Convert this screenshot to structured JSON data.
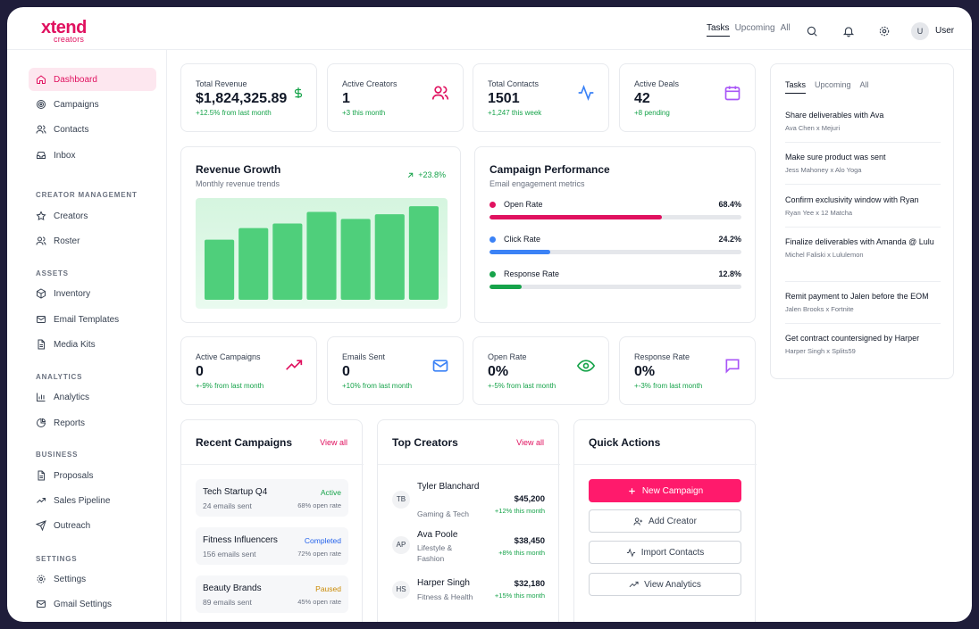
{
  "brand": {
    "line1": "xtend",
    "line2": "creators",
    "accent": "#e0115f"
  },
  "topbar": {
    "tabs": [
      "Tasks",
      "Upcoming",
      "All"
    ],
    "user_initial": "U",
    "user_name": "User",
    "icons": [
      "search-icon",
      "bell-icon",
      "gear-icon"
    ]
  },
  "sidebar": {
    "main": [
      {
        "label": "Dashboard",
        "icon": "home-icon",
        "active": true
      },
      {
        "label": "Campaigns",
        "icon": "target-icon"
      },
      {
        "label": "Contacts",
        "icon": "users-icon"
      },
      {
        "label": "Inbox",
        "icon": "inbox-icon"
      }
    ],
    "sections": [
      {
        "title": "CREATOR MANAGEMENT",
        "items": [
          {
            "label": "Creators",
            "icon": "star-icon"
          },
          {
            "label": "Roster",
            "icon": "users-icon"
          }
        ]
      },
      {
        "title": "ASSETS",
        "items": [
          {
            "label": "Inventory",
            "icon": "box-icon"
          },
          {
            "label": "Email Templates",
            "icon": "mail-icon"
          },
          {
            "label": "Media Kits",
            "icon": "file-icon"
          }
        ]
      },
      {
        "title": "ANALYTICS",
        "items": [
          {
            "label": "Analytics",
            "icon": "bar-chart-icon"
          },
          {
            "label": "Reports",
            "icon": "pie-chart-icon"
          }
        ]
      },
      {
        "title": "BUSINESS",
        "items": [
          {
            "label": "Proposals",
            "icon": "file-icon"
          },
          {
            "label": "Sales Pipeline",
            "icon": "trend-icon"
          },
          {
            "label": "Outreach",
            "icon": "send-icon"
          }
        ]
      },
      {
        "title": "SETTINGS",
        "items": [
          {
            "label": "Settings",
            "icon": "gear-icon"
          },
          {
            "label": "Gmail Settings",
            "icon": "mail-icon"
          }
        ]
      }
    ]
  },
  "stats_top": [
    {
      "label": "Total Revenue",
      "value": "$1,824,325.89",
      "sub": "+12.5% from last month",
      "icon": "dollar-icon",
      "color": "#16a34a"
    },
    {
      "label": "Active Creators",
      "value": "1",
      "sub": "+3 this month",
      "icon": "users-icon",
      "color": "#e0115f"
    },
    {
      "label": "Total Contacts",
      "value": "1501",
      "sub": "+1,247 this week",
      "icon": "activity-icon",
      "color": "#3b82f6"
    },
    {
      "label": "Active Deals",
      "value": "42",
      "sub": "+8 pending",
      "icon": "calendar-icon",
      "color": "#a855f7"
    }
  ],
  "revenue_growth": {
    "title": "Revenue Growth",
    "subtitle": "Monthly revenue trends",
    "change": "+23.8%",
    "chart_data": {
      "type": "bar",
      "values": [
        52,
        62,
        66,
        76,
        70,
        74,
        81
      ],
      "ylim": [
        0,
        88
      ]
    }
  },
  "campaign_performance": {
    "title": "Campaign Performance",
    "subtitle": "Email engagement metrics",
    "metrics": [
      {
        "name": "Open Rate",
        "display": "68.4%",
        "value": 68.4,
        "color": "#e0115f"
      },
      {
        "name": "Click Rate",
        "display": "24.2%",
        "value": 24.2,
        "color": "#3b82f6"
      },
      {
        "name": "Response Rate",
        "display": "12.8%",
        "value": 12.8,
        "color": "#16a34a"
      }
    ]
  },
  "stats_bottom": [
    {
      "label": "Active Campaigns",
      "value": "0",
      "sub": "+-9% from last month",
      "icon": "trend-up-icon",
      "color": "#e0115f"
    },
    {
      "label": "Emails Sent",
      "value": "0",
      "sub": "+10% from last month",
      "icon": "mail-icon",
      "color": "#3b82f6"
    },
    {
      "label": "Open Rate",
      "value": "0%",
      "sub": "+-5% from last month",
      "icon": "eye-icon",
      "color": "#16a34a"
    },
    {
      "label": "Response Rate",
      "value": "0%",
      "sub": "+-3% from last month",
      "icon": "message-icon",
      "color": "#a855f7"
    }
  ],
  "tasks_panel": {
    "tabs": [
      "Tasks",
      "Upcoming",
      "All"
    ],
    "items": [
      {
        "title": "Share deliverables with Ava",
        "sub": "Ava Chen x Mejuri"
      },
      {
        "title": "Make sure product was sent",
        "sub": "Jess Mahoney x Alo Yoga"
      },
      {
        "title": "Confirm exclusivity window with Ryan",
        "sub": "Ryan Yee x 12 Matcha"
      },
      {
        "title": "Finalize deliverables with Amanda @ Lulu",
        "sub": "Michel Faliski x Lululemon"
      },
      {
        "title": "Remit payment to Jalen before the EOM",
        "sub": "Jalen Brooks x Fortnite"
      },
      {
        "title": "Get contract countersigned by Harper",
        "sub": "Harper Singh x Splits59"
      }
    ]
  },
  "recent_campaigns": {
    "title": "Recent Campaigns",
    "view_all": "View all",
    "items": [
      {
        "name": "Tech Startup Q4",
        "sub": "24 emails sent",
        "status": "Active",
        "status_color": "#16a34a",
        "rate": "68% open rate"
      },
      {
        "name": "Fitness Influencers",
        "sub": "156 emails sent",
        "status": "Completed",
        "status_color": "#2563eb",
        "rate": "72% open rate"
      },
      {
        "name": "Beauty Brands",
        "sub": "89 emails sent",
        "status": "Paused",
        "status_color": "#ca8a04",
        "rate": "45% open rate"
      }
    ]
  },
  "top_creators": {
    "title": "Top Creators",
    "view_all": "View all",
    "items": [
      {
        "initials": "TB",
        "name": "Tyler Blanchard",
        "category": "Gaming & Tech",
        "amount": "$45,200",
        "change": "+12% this month"
      },
      {
        "initials": "AP",
        "name": "Ava Poole",
        "category": "Lifestyle & Fashion",
        "amount": "$38,450",
        "change": "+8% this month"
      },
      {
        "initials": "HS",
        "name": "Harper Singh",
        "category": "Fitness & Health",
        "amount": "$32,180",
        "change": "+15% this month"
      }
    ]
  },
  "quick_actions": {
    "title": "Quick Actions",
    "buttons": [
      {
        "label": "New Campaign",
        "icon": "plus-icon"
      },
      {
        "label": "Add Creator",
        "icon": "user-plus-icon"
      },
      {
        "label": "Import Contacts",
        "icon": "activity-icon"
      },
      {
        "label": "View Analytics",
        "icon": "trend-up-icon"
      }
    ]
  }
}
